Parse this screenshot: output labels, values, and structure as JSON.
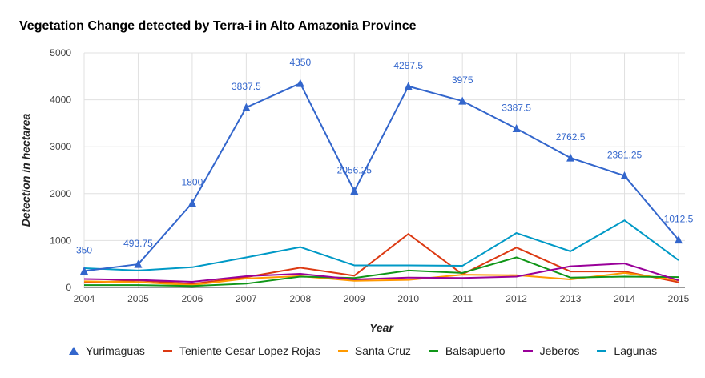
{
  "chart_data": {
    "type": "line",
    "title": "Vegetation Change detected by Terra-i in Alto Amazonia Province",
    "xlabel": "Year",
    "ylabel": "Detection in hectarea",
    "x": [
      "2004",
      "2005",
      "2006",
      "2007",
      "2008",
      "2009",
      "2010",
      "2011",
      "2012",
      "2013",
      "2014",
      "2015"
    ],
    "ylim": [
      0,
      5000
    ],
    "yticks": [
      "0",
      "1000",
      "2000",
      "3000",
      "4000",
      "5000"
    ],
    "grid": true,
    "legend_position": "bottom",
    "series": [
      {
        "name": "Yurimaguas",
        "color": "#3366cc",
        "marker": "triangle",
        "values": [
          350,
          493.75,
          1800,
          3837.5,
          4350,
          2056.25,
          4287.5,
          3975,
          3387.5,
          2762.5,
          2381.25,
          1012.5
        ],
        "labels": [
          "350",
          "493.75",
          "1800",
          "3837.5",
          "4350",
          "2056.25",
          "4287.5",
          "3975",
          "3387.5",
          "2762.5",
          "2381.25",
          "1012.5"
        ]
      },
      {
        "name": "Teniente Cesar Lopez Rojas",
        "color": "#dc3912",
        "values": [
          100,
          150,
          75,
          220,
          420,
          250,
          1140,
          280,
          850,
          340,
          340,
          110
        ]
      },
      {
        "name": "Santa Cruz",
        "color": "#ff9900",
        "values": [
          130,
          110,
          50,
          190,
          240,
          140,
          160,
          270,
          260,
          170,
          310,
          150
        ]
      },
      {
        "name": "Balsapuerto",
        "color": "#109618",
        "values": [
          50,
          50,
          30,
          80,
          230,
          200,
          360,
          310,
          640,
          210,
          230,
          220
        ]
      },
      {
        "name": "Jeberos",
        "color": "#990099",
        "values": [
          180,
          160,
          120,
          240,
          290,
          170,
          210,
          200,
          230,
          450,
          510,
          150
        ]
      },
      {
        "name": "Lagunas",
        "color": "#0099c6",
        "values": [
          410,
          360,
          430,
          640,
          860,
          470,
          470,
          460,
          1160,
          770,
          1430,
          580
        ]
      }
    ]
  }
}
